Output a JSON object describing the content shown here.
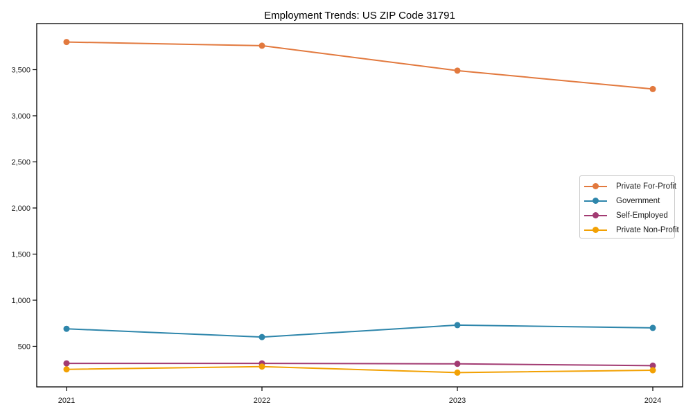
{
  "chart_data": {
    "type": "line",
    "title": "Employment Trends: US ZIP Code 31791",
    "categories": [
      "2021",
      "2022",
      "2023",
      "2024"
    ],
    "series": [
      {
        "name": "Private For-Profit",
        "color": "#E2793E",
        "values": [
          3800,
          3760,
          3490,
          3290
        ]
      },
      {
        "name": "Government",
        "color": "#2E86AB",
        "values": [
          690,
          600,
          730,
          700
        ]
      },
      {
        "name": "Self-Employed",
        "color": "#A23B72",
        "values": [
          315,
          315,
          310,
          290
        ]
      },
      {
        "name": "Private Non-Profit",
        "color": "#F2A104",
        "values": [
          250,
          280,
          215,
          240
        ]
      }
    ],
    "ylim": [
      60,
      4000
    ],
    "yticks": [
      500,
      1000,
      1500,
      2000,
      2500,
      3000,
      3500
    ],
    "ytick_labels": [
      "500",
      "1,000",
      "1,500",
      "2,000",
      "2,500",
      "3,000",
      "3,500"
    ],
    "xlabel": "",
    "ylabel": "",
    "grid": false,
    "legend_position": "center-right",
    "frame": "full-box",
    "axis_color": "#000000",
    "background_color": "#ffffff"
  }
}
